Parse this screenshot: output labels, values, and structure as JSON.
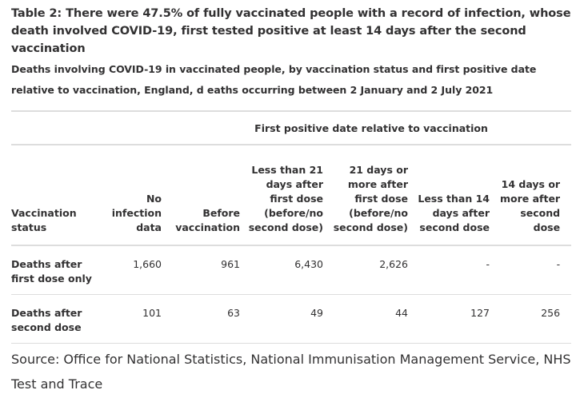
{
  "title": "Table 2: There were 47.5% of fully vaccinated people with a record of infection, whose death involved COVID-19, first tested positive at least 14 days after the second vaccination",
  "subtitle": "Deaths involving COVID-19 in vaccinated people, by vaccination status and first positive date relative to vaccination, England, d eaths occurring between 2 January and 2 July 2021",
  "table": {
    "group_header": "First positive date relative to vaccination",
    "columns": [
      "Vaccination\nstatus",
      "No\ninfection\ndata",
      "Before\nvaccination",
      "Less than 21\ndays after\nfirst dose\n(before/no\nsecond dose)",
      "21 days or\nmore after\nfirst dose\n(before/no\nsecond dose)",
      "Less than 14\ndays after\nsecond dose",
      "14 days or\nmore after\nsecond dose"
    ],
    "rows": [
      {
        "label": "Deaths after\nfirst dose only",
        "values": [
          "1,660",
          "961",
          "6,430",
          "2,626",
          "-",
          "-"
        ]
      },
      {
        "label": "Deaths after\nsecond dose",
        "values": [
          "101",
          "63",
          "49",
          "44",
          "127",
          "256"
        ]
      }
    ]
  },
  "source": "Source: Office for National Statistics, National Immunisation Management Service, NHS Test and Trace"
}
